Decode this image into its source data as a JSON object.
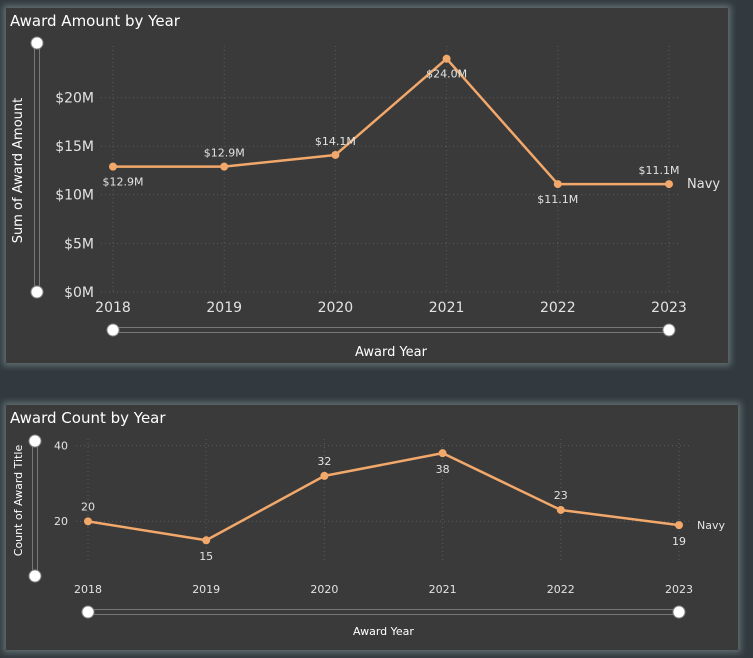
{
  "charts": [
    {
      "title": "Award Amount by Year",
      "xlabel": "Award Year",
      "ylabel": "Sum of Award Amount",
      "series_label": "Navy",
      "y_ticks": [
        "$0M",
        "$5M",
        "$10M",
        "$15M",
        "$20M"
      ],
      "data_labels": [
        "$12.9M",
        "$12.9M",
        "$14.1M",
        "$24.0M",
        "$11.1M",
        "$11.1M"
      ]
    },
    {
      "title": "Award Count by Year",
      "xlabel": "Award Year",
      "ylabel": "Count of Award Title",
      "series_label": "Navy",
      "y_ticks": [
        "20",
        "40"
      ],
      "data_labels": [
        "20",
        "15",
        "32",
        "38",
        "23",
        "19"
      ]
    }
  ],
  "chart_data": [
    {
      "type": "line",
      "title": "Award Amount by Year",
      "xlabel": "Award Year",
      "ylabel": "Sum of Award Amount",
      "x": [
        "2018",
        "2019",
        "2020",
        "2021",
        "2022",
        "2023"
      ],
      "series": [
        {
          "name": "Navy",
          "values": [
            12.9,
            12.9,
            14.1,
            24.0,
            11.1,
            11.1
          ],
          "color": "#f2a86a"
        }
      ],
      "ylim": [
        0,
        25
      ],
      "unit": "$M",
      "grid": true
    },
    {
      "type": "line",
      "title": "Award Count by Year",
      "xlabel": "Award Year",
      "ylabel": "Count of Award Title",
      "x": [
        "2018",
        "2019",
        "2020",
        "2021",
        "2022",
        "2023"
      ],
      "series": [
        {
          "name": "Navy",
          "values": [
            20,
            15,
            32,
            38,
            23,
            19
          ],
          "color": "#f2a86a"
        }
      ],
      "ylim": [
        9,
        42
      ],
      "grid": true
    }
  ]
}
